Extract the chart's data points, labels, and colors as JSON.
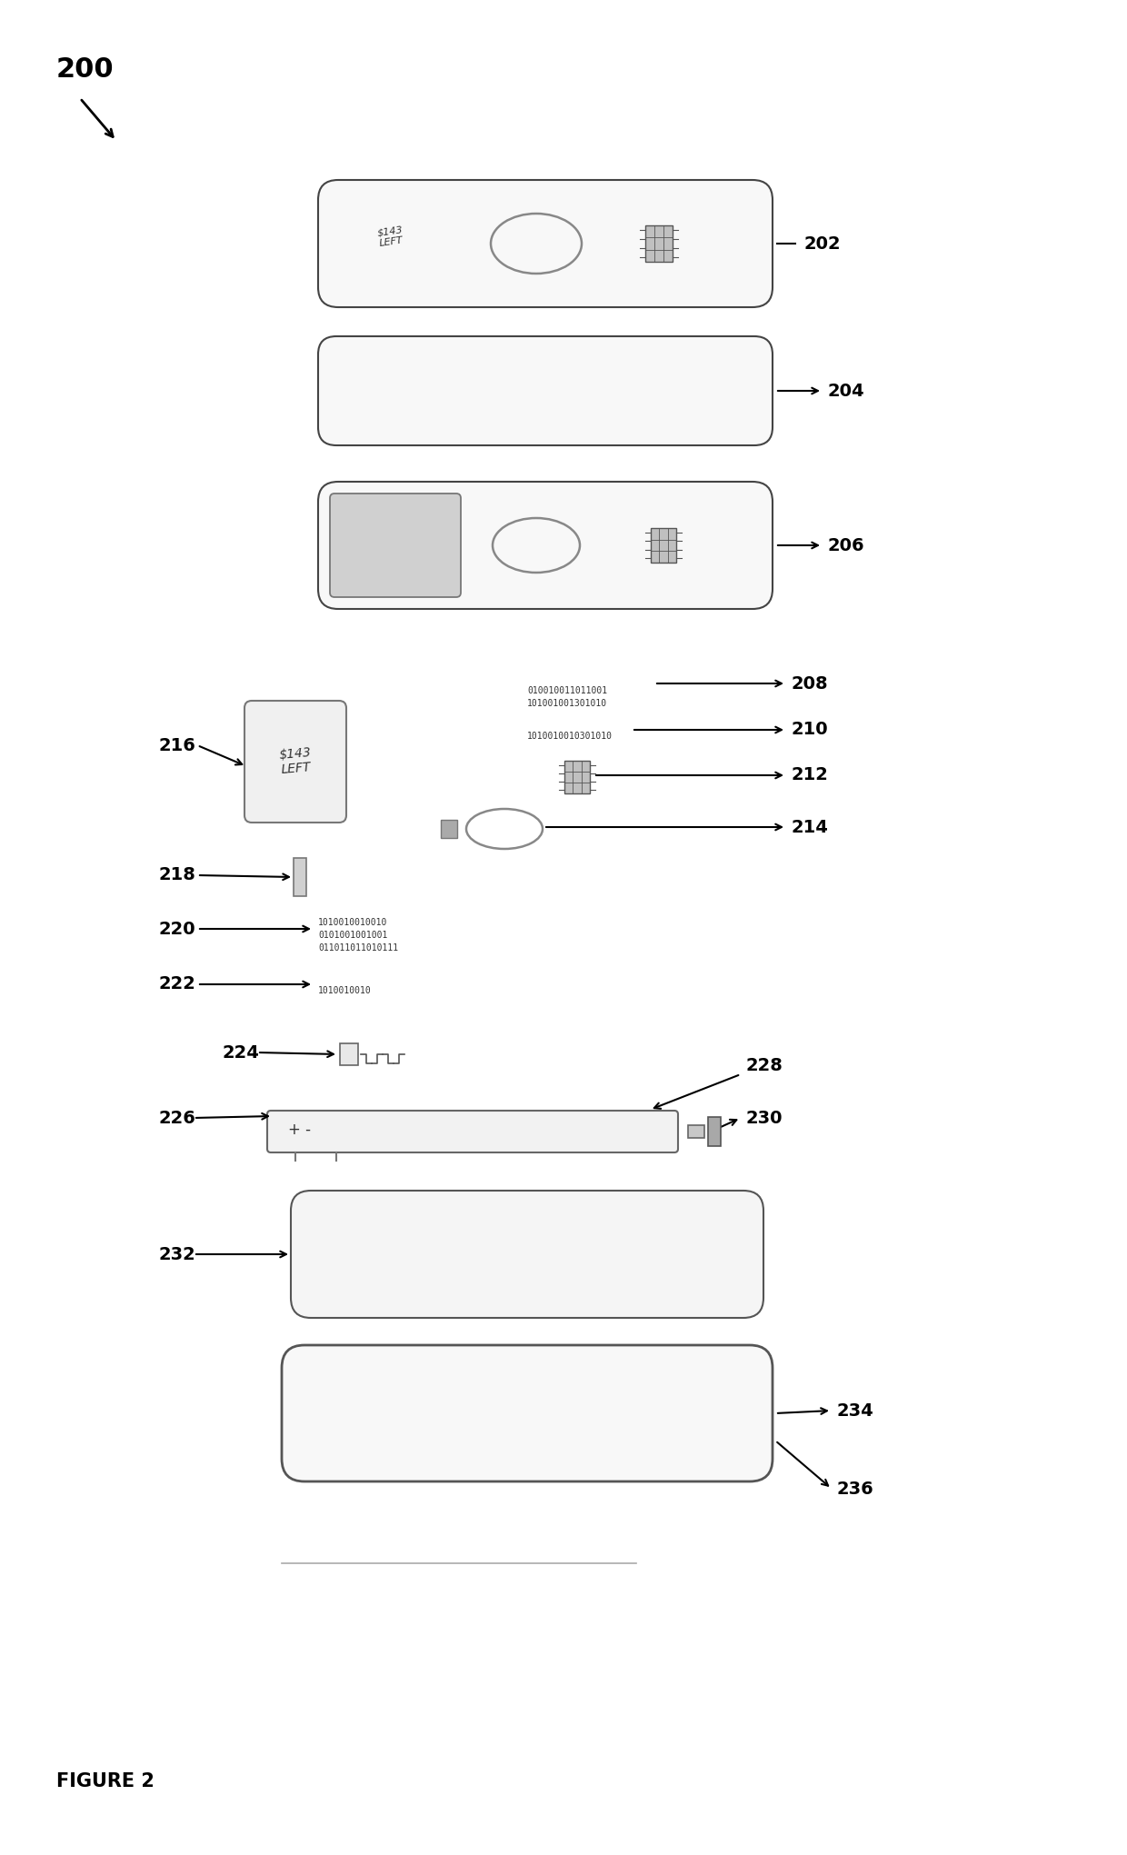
{
  "title": "FIGURE 2",
  "label_200": "200",
  "label_202": "202",
  "label_204": "204",
  "label_206": "206",
  "label_208": "208",
  "label_210": "210",
  "label_212": "212",
  "label_214": "214",
  "label_216": "216",
  "label_218": "218",
  "label_220": "220",
  "label_222": "222",
  "label_224": "224",
  "label_226": "226",
  "label_228": "228",
  "label_230": "230",
  "label_232": "232",
  "label_234": "234",
  "label_236": "236",
  "text_208a": "010010011011001",
  "text_208b": "101001001301010",
  "text_210": "1010010010301010",
  "text_220a": "1010010010010",
  "text_220b": "0101001001001",
  "text_220c": "011011011010111",
  "text_222": "1010010010",
  "bg_color": "#ffffff",
  "line_color": "#000000"
}
